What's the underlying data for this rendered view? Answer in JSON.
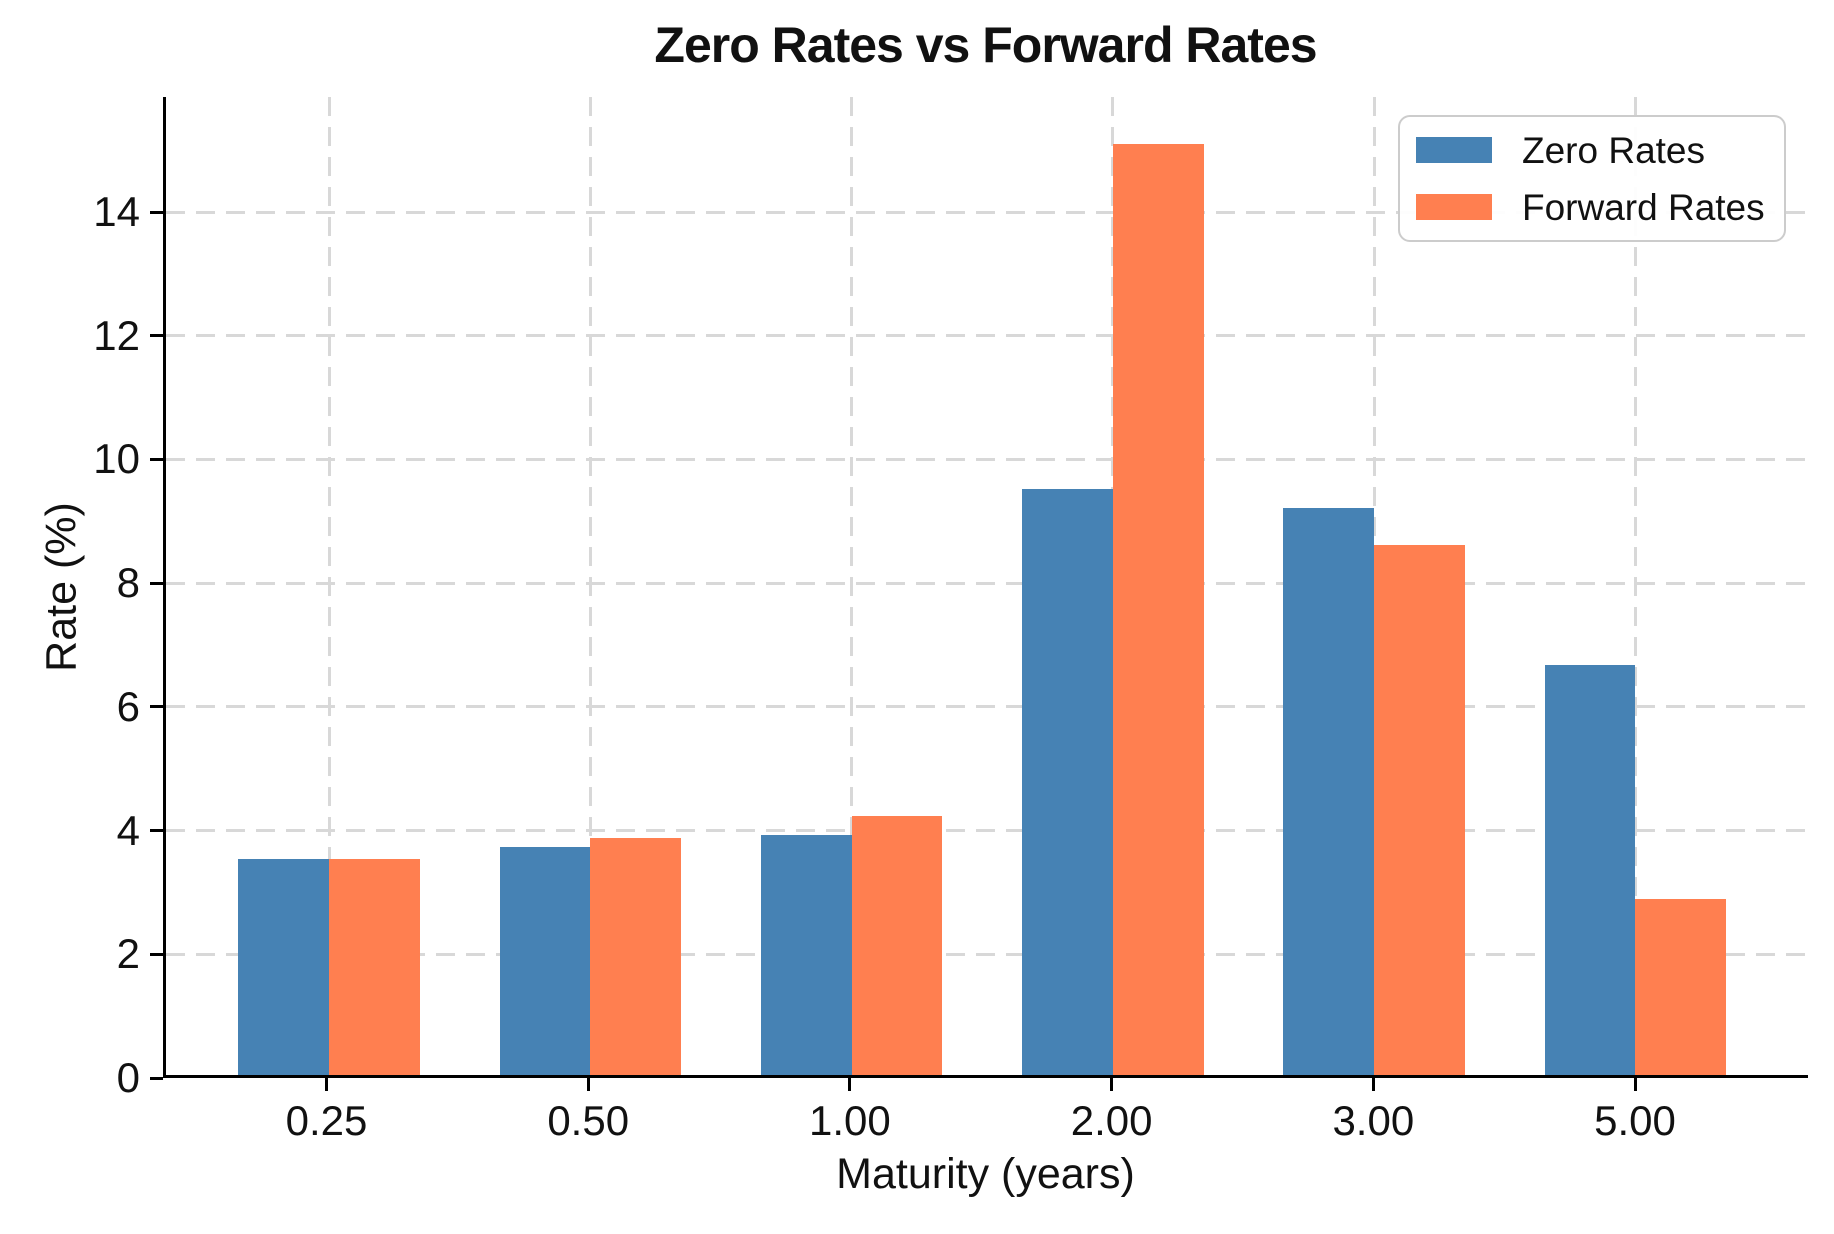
{
  "title": "Zero Rates vs Forward Rates",
  "chart_data": {
    "type": "bar",
    "title": "Zero Rates vs Forward Rates",
    "xlabel": "Maturity (years)",
    "ylabel": "Rate (%)",
    "categories": [
      "0.25",
      "0.50",
      "1.00",
      "2.00",
      "3.00",
      "5.00"
    ],
    "series": [
      {
        "name": "Zero Rates",
        "color": "#4682B4",
        "values": [
          3.5,
          3.7,
          3.9,
          9.5,
          9.2,
          6.65
        ]
      },
      {
        "name": "Forward Rates",
        "color": "#FF7F50",
        "values": [
          3.5,
          3.85,
          4.2,
          15.1,
          8.6,
          2.85
        ]
      }
    ],
    "yticks": [
      0,
      2,
      4,
      6,
      8,
      10,
      12,
      14
    ],
    "ylim": [
      0,
      15.86
    ],
    "grid": true,
    "grid_style": "dashed",
    "legend_position": "upper right",
    "colors": {
      "grid": "#d8d8d8",
      "spine": "#000000",
      "text": "#111111",
      "legend_border": "#cccccc"
    }
  }
}
